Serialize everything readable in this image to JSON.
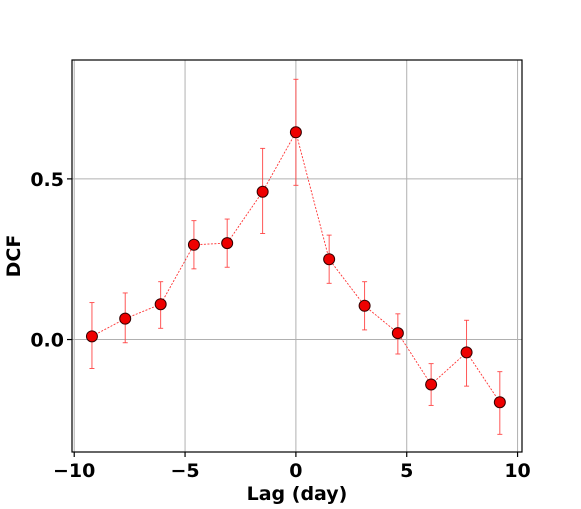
{
  "chart_data": {
    "type": "scatter",
    "xlabel": "Lag (day)",
    "ylabel": "DCF",
    "xlim": [
      -10.1,
      10.2
    ],
    "ylim": [
      -0.35,
      0.87
    ],
    "xticks": [
      -10,
      -5,
      0,
      5,
      10
    ],
    "xtick_labels": [
      "−10",
      "−5",
      "0",
      "5",
      "10"
    ],
    "yticks": [
      0.0,
      0.5
    ],
    "ytick_labels": [
      "0.0",
      "0.5"
    ],
    "grid": true,
    "series": [
      {
        "x": [
          -9.2,
          -7.7,
          -6.1,
          -4.6,
          -3.1,
          -1.5,
          0.0,
          1.5,
          3.1,
          4.6,
          6.1,
          7.7,
          9.2
        ],
        "y": [
          0.01,
          0.065,
          0.11,
          0.295,
          0.3,
          0.46,
          0.645,
          0.25,
          0.105,
          0.02,
          -0.14,
          -0.04,
          -0.195
        ],
        "yerr_low": [
          0.1,
          0.075,
          0.075,
          0.075,
          0.075,
          0.13,
          0.165,
          0.075,
          0.075,
          0.065,
          0.065,
          0.105,
          0.1
        ],
        "yerr_high": [
          0.105,
          0.08,
          0.07,
          0.075,
          0.075,
          0.135,
          0.165,
          0.075,
          0.075,
          0.06,
          0.065,
          0.1,
          0.095
        ],
        "marker_color": "#ee0000",
        "line_color": "#ff3333",
        "errorbar_color": "#ff4444",
        "marker_edge_color": "#330000"
      }
    ]
  }
}
